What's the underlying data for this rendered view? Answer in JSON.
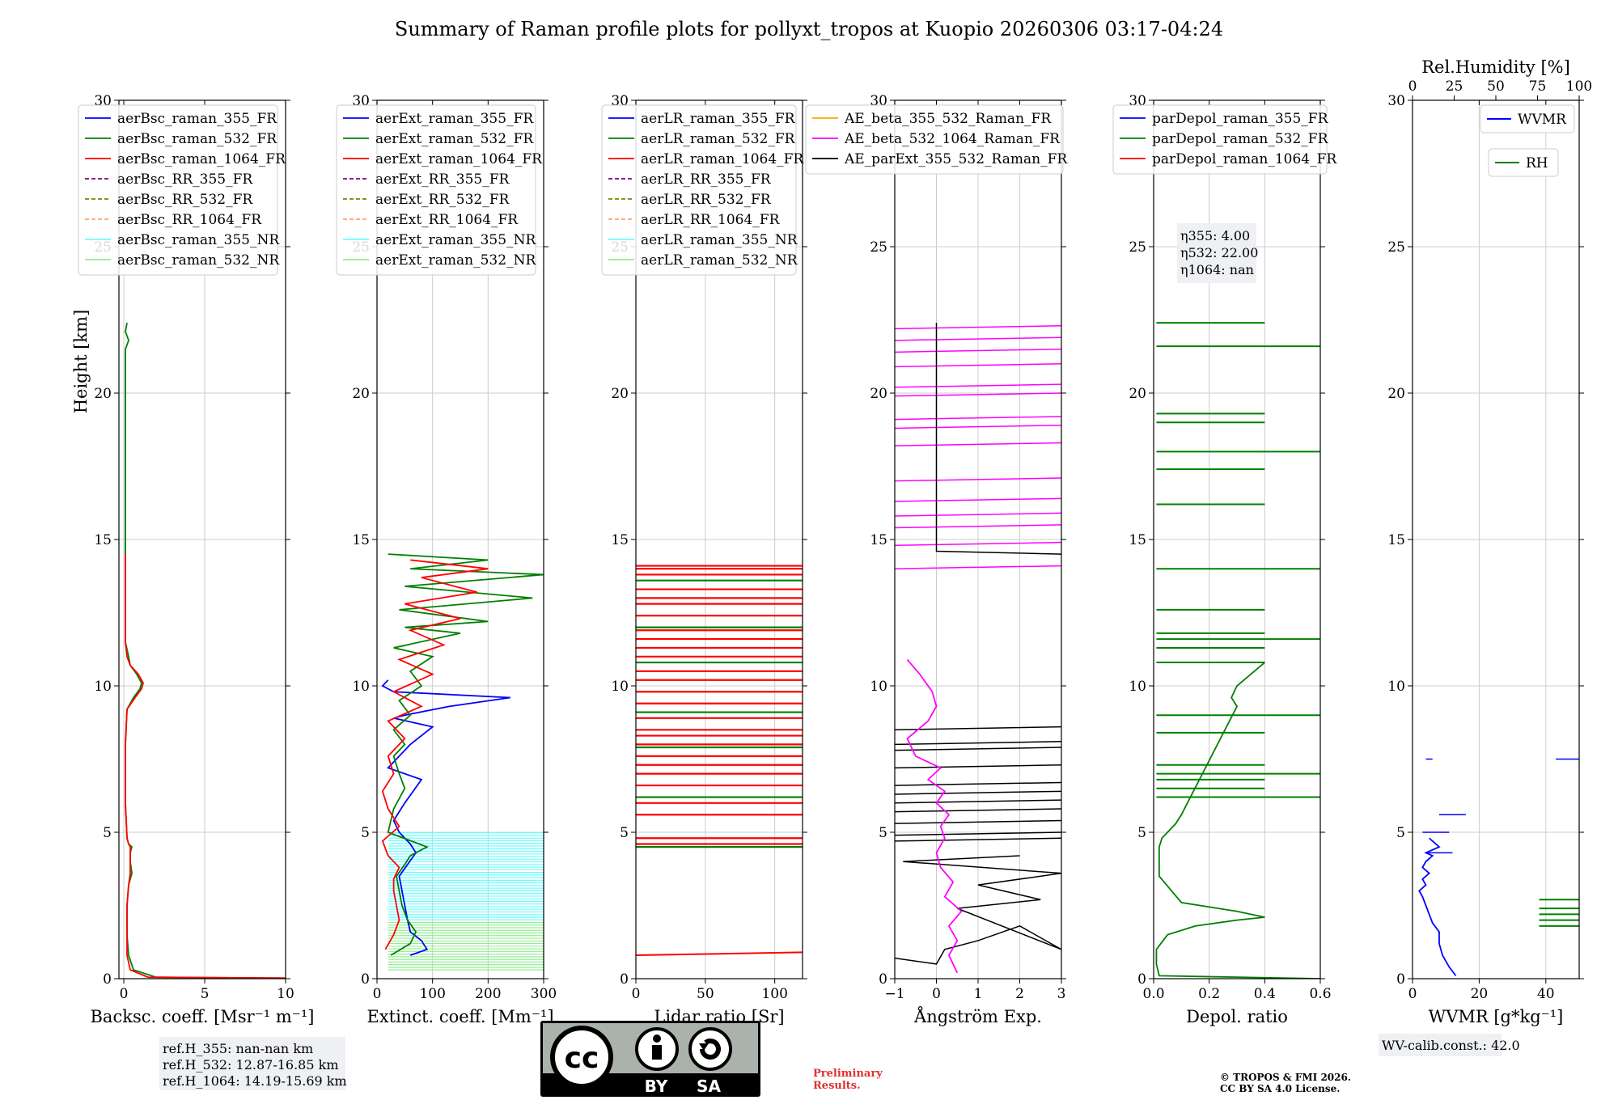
{
  "title": "Summary of Raman profile plots for pollyxt_tropos at Kuopio 20260306 03:17-04:24",
  "chart_data": [
    {
      "type": "line",
      "name": "backscatter",
      "xlabel": "Backsc. coeff. [Msr⁻¹ m⁻¹]",
      "ylabel": "Height [km]",
      "xlim": [
        -0.3,
        10
      ],
      "ylim": [
        0,
        30
      ],
      "xticks": [
        0,
        5,
        10
      ],
      "yticks": [
        0,
        5,
        10,
        15,
        20,
        25,
        30
      ],
      "legend": [
        {
          "label": "aerBsc_raman_355_FR",
          "color": "#0000ff",
          "dash": "solid"
        },
        {
          "label": "aerBsc_raman_532_FR",
          "color": "#008000",
          "dash": "solid"
        },
        {
          "label": "aerBsc_raman_1064_FR",
          "color": "#ff0000",
          "dash": "solid"
        },
        {
          "label": "aerBsc_RR_355_FR",
          "color": "#800080",
          "dash": "dashed"
        },
        {
          "label": "aerBsc_RR_532_FR",
          "color": "#808000",
          "dash": "dashed"
        },
        {
          "label": "aerBsc_RR_1064_FR",
          "color": "#ffa07a",
          "dash": "dashed"
        },
        {
          "label": "aerBsc_raman_355_NR",
          "color": "#66ffff",
          "dash": "solid"
        },
        {
          "label": "aerBsc_raman_532_NR",
          "color": "#90ee90",
          "dash": "solid"
        }
      ],
      "series": [
        {
          "name": "aerBsc_raman_532_FR",
          "color": "#008000",
          "x": [
            10,
            2,
            0.6,
            0.3,
            0.2,
            0.2,
            0.3,
            0.5,
            0.4,
            0.4,
            0.5,
            0.3,
            0.2,
            0.1,
            0.1,
            0.2,
            0.6,
            1.0,
            1.1,
            0.8,
            0.4,
            0.3,
            0.1,
            0.1,
            0.1,
            0.1,
            0.1,
            0.1,
            0.1,
            0.3,
            0.1,
            0.2
          ],
          "y": [
            0.02,
            0.05,
            0.3,
            0.8,
            1.5,
            2.5,
            3.2,
            3.6,
            4.0,
            4.3,
            4.5,
            4.6,
            4.8,
            6.0,
            8.0,
            9.2,
            9.6,
            9.9,
            10.1,
            10.4,
            10.7,
            11.0,
            11.5,
            13.0,
            15.0,
            17.0,
            19.0,
            20.5,
            21.5,
            21.8,
            22.1,
            22.4
          ]
        },
        {
          "name": "aerBsc_raman_1064_FR",
          "color": "#ff0000",
          "x": [
            10,
            1.5,
            0.4,
            0.2,
            0.2,
            0.2,
            0.3,
            0.4,
            0.4,
            0.4,
            0.4,
            0.3,
            0.2,
            0.1,
            0.1,
            0.2,
            0.7,
            1.1,
            1.2,
            0.9,
            0.4,
            0.2,
            0.1,
            0.1,
            0.1
          ],
          "y": [
            0.02,
            0.05,
            0.3,
            0.8,
            1.5,
            2.5,
            3.2,
            3.6,
            4.0,
            4.3,
            4.5,
            4.6,
            4.8,
            6.0,
            8.0,
            9.2,
            9.6,
            9.9,
            10.1,
            10.4,
            10.7,
            11.0,
            11.5,
            13.0,
            14.5
          ]
        }
      ],
      "annotation": [
        "ref.H_355: nan-nan km",
        "ref.H_532: 12.87-16.85 km",
        "ref.H_1064: 14.19-15.69 km"
      ]
    },
    {
      "type": "line",
      "name": "extinction",
      "xlabel": "Extinct. coeff. [Mm⁻¹]",
      "xlim": [
        0,
        300
      ],
      "ylim": [
        0,
        30
      ],
      "xticks": [
        0,
        100,
        200,
        300
      ],
      "yticks": [
        0,
        5,
        10,
        15,
        20,
        25,
        30
      ],
      "legend": [
        {
          "label": "aerExt_raman_355_FR",
          "color": "#0000ff",
          "dash": "solid"
        },
        {
          "label": "aerExt_raman_532_FR",
          "color": "#008000",
          "dash": "solid"
        },
        {
          "label": "aerExt_raman_1064_FR",
          "color": "#ff0000",
          "dash": "solid"
        },
        {
          "label": "aerExt_RR_355_FR",
          "color": "#800080",
          "dash": "dashed"
        },
        {
          "label": "aerExt_RR_532_FR",
          "color": "#808000",
          "dash": "dashed"
        },
        {
          "label": "aerExt_RR_1064_FR",
          "color": "#ffa07a",
          "dash": "dashed"
        },
        {
          "label": "aerExt_raman_355_NR",
          "color": "#66ffff",
          "dash": "solid"
        },
        {
          "label": "aerExt_raman_532_NR",
          "color": "#90ee90",
          "dash": "solid"
        }
      ],
      "series": [
        {
          "name": "aerExt_raman_355_FR",
          "color": "#0000ff",
          "x": [
            60,
            90,
            80,
            60,
            55,
            50,
            45,
            40,
            55,
            70,
            60,
            40,
            30,
            50,
            80,
            20,
            40,
            60,
            100,
            30,
            50,
            130,
            240,
            30,
            10,
            20
          ],
          "y": [
            0.8,
            1.0,
            1.3,
            1.6,
            2.0,
            2.5,
            3.0,
            3.5,
            3.9,
            4.3,
            4.6,
            5.0,
            5.4,
            6.0,
            6.8,
            7.2,
            7.6,
            8.0,
            8.6,
            8.9,
            9.0,
            9.3,
            9.6,
            9.8,
            10.0,
            10.2
          ]
        },
        {
          "name": "aerExt_raman_532_FR",
          "color": "#008000",
          "x": [
            25,
            60,
            70,
            55,
            45,
            40,
            35,
            50,
            60,
            90,
            20,
            30,
            50,
            40,
            30,
            50,
            30,
            60,
            40,
            80,
            60,
            100,
            30,
            150,
            50,
            200,
            40,
            280,
            50,
            300,
            60,
            200,
            20
          ],
          "y": [
            0.8,
            1.2,
            1.6,
            2.0,
            2.5,
            3.0,
            3.5,
            3.9,
            4.2,
            4.5,
            5.0,
            5.8,
            6.5,
            7.0,
            7.6,
            8.0,
            8.5,
            9.0,
            9.5,
            10.0,
            10.5,
            11.0,
            11.3,
            11.8,
            12.0,
            12.2,
            12.6,
            13.0,
            13.4,
            13.8,
            14.0,
            14.3,
            14.5
          ]
        },
        {
          "name": "aerExt_raman_1064_FR",
          "color": "#ff0000",
          "x": [
            15,
            30,
            40,
            35,
            30,
            30,
            40,
            20,
            10,
            40,
            20,
            10,
            30,
            20,
            50,
            20,
            80,
            30,
            100,
            40,
            120,
            60,
            150,
            50,
            180,
            80,
            200,
            60
          ],
          "y": [
            1.0,
            1.5,
            2.0,
            2.5,
            3.0,
            3.4,
            3.8,
            4.2,
            4.7,
            5.2,
            5.8,
            6.4,
            7.0,
            7.6,
            8.2,
            8.8,
            9.3,
            9.8,
            10.4,
            10.9,
            11.4,
            11.9,
            12.3,
            12.8,
            13.2,
            13.7,
            14.0,
            14.3
          ]
        }
      ]
    },
    {
      "type": "line",
      "name": "lidar_ratio",
      "xlabel": "Lidar ratio [Sr]",
      "xlim": [
        0,
        120
      ],
      "ylim": [
        0,
        30
      ],
      "xticks": [
        0,
        50,
        100
      ],
      "yticks": [
        0,
        5,
        10,
        15,
        20,
        25,
        30
      ],
      "legend": [
        {
          "label": "aerLR_raman_355_FR",
          "color": "#0000ff",
          "dash": "solid"
        },
        {
          "label": "aerLR_raman_532_FR",
          "color": "#008000",
          "dash": "solid"
        },
        {
          "label": "aerLR_raman_1064_FR",
          "color": "#ff0000",
          "dash": "solid"
        },
        {
          "label": "aerLR_RR_355_FR",
          "color": "#800080",
          "dash": "dashed"
        },
        {
          "label": "aerLR_RR_532_FR",
          "color": "#808000",
          "dash": "dashed"
        },
        {
          "label": "aerLR_RR_1064_FR",
          "color": "#ffa07a",
          "dash": "dashed"
        },
        {
          "label": "aerLR_raman_355_NR",
          "color": "#66ffff",
          "dash": "solid"
        },
        {
          "label": "aerLR_raman_532_NR",
          "color": "#90ee90",
          "dash": "solid"
        }
      ]
    },
    {
      "type": "line",
      "name": "angstrom",
      "xlabel": "Ångström Exp.",
      "xlim": [
        -1,
        3
      ],
      "ylim": [
        0,
        30
      ],
      "xticks": [
        -1,
        0,
        1,
        2,
        3
      ],
      "yticks": [
        0,
        5,
        10,
        15,
        20,
        25,
        30
      ],
      "legend": [
        {
          "label": "AE_beta_355_532_Raman_FR",
          "color": "#ffa500",
          "dash": "solid"
        },
        {
          "label": "AE_beta_532_1064_Raman_FR",
          "color": "#ff00ff",
          "dash": "solid"
        },
        {
          "label": "AE_parExt_355_532_Raman_FR",
          "color": "#000000",
          "dash": "solid"
        }
      ],
      "series": [
        {
          "name": "AE_beta_532_1064_Raman_FR",
          "color": "#ff00ff",
          "x": [
            0.5,
            0.3,
            0.5,
            0.3,
            0.6,
            0.2,
            0.4,
            0.1,
            0.0,
            0.2,
            0.1,
            0.3,
            0.0,
            0.2,
            -0.2,
            0.1,
            -0.5,
            -0.7,
            -0.2,
            0.0,
            -0.1,
            -0.4,
            -0.7
          ],
          "y": [
            0.2,
            0.8,
            1.3,
            1.8,
            2.3,
            2.8,
            3.3,
            3.8,
            4.3,
            4.8,
            5.2,
            5.6,
            6.0,
            6.4,
            6.8,
            7.2,
            7.6,
            8.2,
            8.8,
            9.3,
            9.8,
            10.4,
            10.9
          ]
        }
      ]
    },
    {
      "type": "line",
      "name": "depolarization",
      "xlabel": "Depol. ratio",
      "xlim": [
        0,
        0.6
      ],
      "ylim": [
        0,
        30
      ],
      "xticks": [
        0.0,
        0.2,
        0.4,
        0.6
      ],
      "xtick_labels": [
        "0.0",
        "0.2",
        "0.4",
        "0.6"
      ],
      "yticks": [
        0,
        5,
        10,
        15,
        20,
        25,
        30
      ],
      "legend": [
        {
          "label": "parDepol_raman_355_FR",
          "color": "#0000ff",
          "dash": "solid"
        },
        {
          "label": "parDepol_raman_532_FR",
          "color": "#008000",
          "dash": "solid"
        },
        {
          "label": "parDepol_raman_1064_FR",
          "color": "#ff0000",
          "dash": "solid"
        }
      ],
      "series": [
        {
          "name": "parDepol_raman_532_FR",
          "color": "#008000",
          "x": [
            0.6,
            0.02,
            0.01,
            0.01,
            0.05,
            0.15,
            0.3,
            0.4,
            0.3,
            0.1,
            0.02,
            0.02,
            0.03,
            0.05,
            0.08,
            0.1,
            0.3,
            0.28,
            0.3,
            0.35,
            0.4
          ],
          "y": [
            0.0,
            0.1,
            0.5,
            1.0,
            1.5,
            1.8,
            2.0,
            2.1,
            2.3,
            2.6,
            3.5,
            4.5,
            4.8,
            5.0,
            5.3,
            5.6,
            9.3,
            9.6,
            10.0,
            10.4,
            10.8
          ]
        }
      ],
      "eta_box": [
        "η355: 4.00",
        "η532: 22.00",
        "η1064: nan"
      ]
    },
    {
      "type": "line",
      "name": "water_vapor",
      "xlabel": "WVMR [g*kg⁻¹]",
      "top_xlabel": "Rel.Humidity [%]",
      "xlim": [
        0,
        50
      ],
      "top_xlim": [
        0,
        100
      ],
      "ylim": [
        0,
        30
      ],
      "xticks": [
        0,
        20,
        40
      ],
      "top_xticks": [
        0,
        25,
        50,
        75,
        100
      ],
      "yticks": [
        0,
        5,
        10,
        15,
        20,
        25,
        30
      ],
      "legend": [
        {
          "label": "WVMR",
          "color": "#0000ff",
          "dash": "solid"
        },
        {
          "label": "RH",
          "color": "#008000",
          "dash": "solid"
        }
      ],
      "series": [
        {
          "name": "WVMR",
          "color": "#0000ff",
          "x": [
            13,
            11,
            9,
            8,
            8,
            6,
            5,
            4,
            3,
            2,
            4,
            3,
            5,
            3,
            4,
            6,
            4,
            8,
            5
          ],
          "y": [
            0.1,
            0.4,
            0.8,
            1.2,
            1.6,
            1.9,
            2.2,
            2.5,
            2.8,
            3.0,
            3.2,
            3.4,
            3.6,
            3.8,
            4.0,
            4.2,
            4.3,
            4.5,
            4.8
          ]
        }
      ],
      "annotation": "WV-calib.const.: 42.0"
    }
  ],
  "footer": {
    "preliminary": [
      "Preliminary",
      "Results."
    ],
    "copyright": [
      "© TROPOS & FMI 2026.",
      "CC BY SA 4.0 License."
    ],
    "cc_badge": {
      "by": "BY",
      "sa": "SA",
      "cc": "cc"
    }
  }
}
